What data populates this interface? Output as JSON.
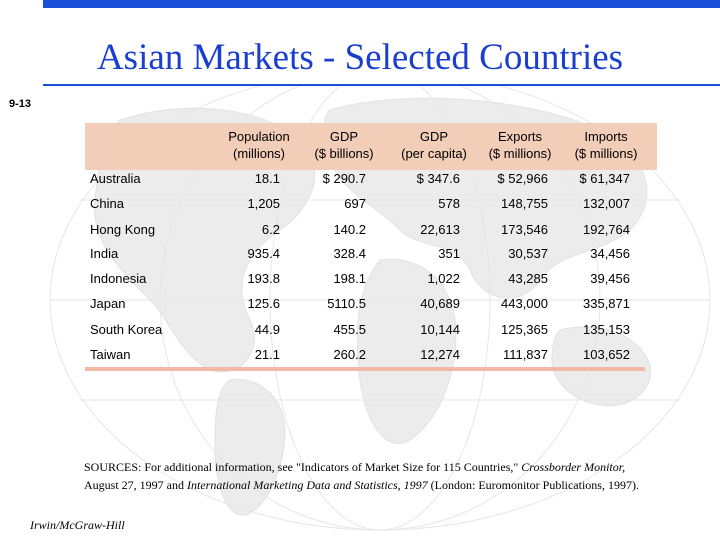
{
  "slide_number": "9-13",
  "title": "Asian Markets - Selected Countries",
  "columns": [
    {
      "line1": "Population",
      "line2": "(millions)"
    },
    {
      "line1": "GDP",
      "line2": "($ billions)"
    },
    {
      "line1": "GDP",
      "line2": "(per capita)"
    },
    {
      "line1": "Exports",
      "line2": "($ millions)"
    },
    {
      "line1": "Imports",
      "line2": "($ millions)"
    }
  ],
  "rows": [
    {
      "country": "Australia",
      "values": [
        "18.1",
        "$ 290.7",
        "$ 347.6",
        "$ 52,966",
        "$ 61,347"
      ]
    },
    {
      "country": "China",
      "values": [
        "1,205",
        "697",
        "578",
        "148,755",
        "132,007"
      ]
    },
    {
      "country": "Hong Kong",
      "values": [
        "6.2",
        "140.2",
        "22,613",
        "173,546",
        "192,764"
      ]
    },
    {
      "country": "India",
      "values": [
        "935.4",
        "328.4",
        "351",
        "30,537",
        "34,456"
      ]
    },
    {
      "country": "Indonesia",
      "values": [
        "193.8",
        "198.1",
        "1,022",
        "43,285",
        "39,456"
      ]
    },
    {
      "country": "Japan",
      "values": [
        "125.6",
        "5110.5",
        "40,689",
        "443,000",
        "335,871"
      ]
    },
    {
      "country": "South Korea",
      "values": [
        "44.9",
        "455.5",
        "10,144",
        "125,365",
        "135,153"
      ]
    },
    {
      "country": "Taiwan",
      "values": [
        "21.1",
        "260.2",
        "12,274",
        "111,837",
        "103,652"
      ]
    }
  ],
  "sources": {
    "part1": "SOURCES: For additional information, see \"Indicators of Market Size for 115 Countries,\" ",
    "part2": "Crossborder Monitor,",
    "part3": " August 27, 1997 and ",
    "part4": "International Marketing Data and Statistics, 1997",
    "part5": " (London: Euromonitor Publications, 1997)."
  },
  "publisher": "Irwin/McGraw-Hill",
  "colors": {
    "title_bar": "#1a4fd8",
    "title_text": "#1a3fd0",
    "header_band": "#f2cdb8"
  }
}
